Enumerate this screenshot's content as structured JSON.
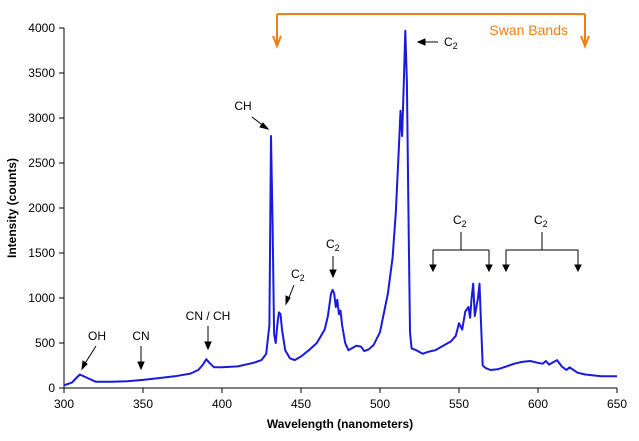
{
  "chart_data": {
    "type": "line",
    "title": "",
    "xlabel": "Wavelength (nanometers)",
    "ylabel": "Intensity (counts)",
    "xlim": [
      300,
      650
    ],
    "ylim": [
      0,
      4000
    ],
    "x_ticks": [
      300,
      350,
      400,
      450,
      500,
      550,
      600,
      650
    ],
    "y_ticks": [
      0,
      500,
      1000,
      1500,
      2000,
      2500,
      3000,
      3500,
      4000
    ],
    "grid": false,
    "line_color": "#1a1adc",
    "series": [
      {
        "x": [
          300,
          305,
          310,
          315,
          320,
          330,
          340,
          350,
          360,
          370,
          380,
          385,
          388,
          390,
          392,
          395,
          400,
          410,
          420,
          425,
          428,
          430,
          431,
          432,
          433,
          434,
          435,
          436,
          437,
          438,
          440,
          443,
          446,
          450,
          455,
          460,
          465,
          467,
          469,
          470,
          471,
          472,
          473,
          474,
          475,
          476,
          478,
          480,
          485,
          488,
          490,
          493,
          496,
          500,
          505,
          508,
          510,
          512,
          513,
          514,
          515,
          516,
          517,
          518,
          519,
          520,
          523,
          527,
          530,
          535,
          540,
          545,
          548,
          550,
          552,
          554,
          556,
          557,
          558,
          559,
          560,
          561,
          562,
          563,
          564,
          565,
          567,
          570,
          575,
          580,
          585,
          590,
          595,
          600,
          603,
          605,
          607,
          610,
          612,
          615,
          618,
          620,
          625,
          630,
          640,
          650
        ],
        "y": [
          30,
          60,
          150,
          110,
          70,
          70,
          75,
          90,
          110,
          130,
          160,
          200,
          260,
          320,
          280,
          230,
          230,
          240,
          280,
          310,
          380,
          700,
          2800,
          1800,
          600,
          500,
          700,
          840,
          820,
          650,
          420,
          330,
          310,
          350,
          420,
          500,
          650,
          800,
          1050,
          1090,
          1050,
          900,
          980,
          820,
          860,
          700,
          500,
          420,
          470,
          460,
          410,
          430,
          480,
          620,
          1050,
          1450,
          1950,
          2700,
          3080,
          2800,
          3350,
          3970,
          3400,
          2000,
          620,
          440,
          420,
          380,
          400,
          420,
          470,
          520,
          580,
          720,
          650,
          850,
          900,
          780,
          1000,
          1160,
          800,
          900,
          1000,
          1160,
          700,
          250,
          220,
          200,
          210,
          240,
          270,
          290,
          300,
          280,
          270,
          300,
          260,
          290,
          310,
          240,
          200,
          230,
          170,
          150,
          130,
          130
        ]
      }
    ],
    "annotations": {
      "oh": "OH",
      "cn": "CN",
      "cn_ch": "CN / CH",
      "ch": "CH",
      "c2_main": "C",
      "c2_sub": "2",
      "swan": "Swan Bands"
    }
  }
}
